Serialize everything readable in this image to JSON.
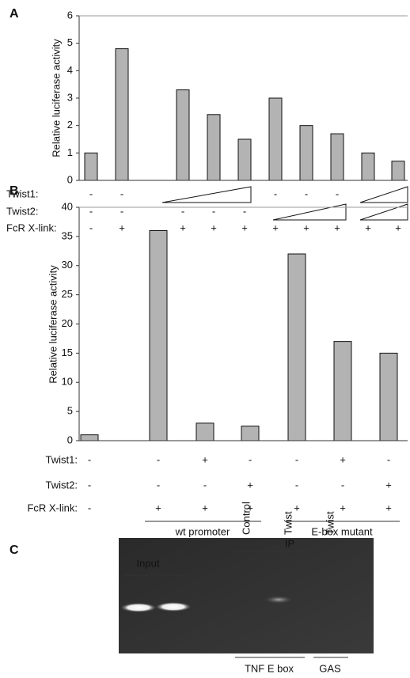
{
  "chart_data": [
    {
      "type": "bar",
      "panel_label": "A",
      "y_label": "Relative luciferase activity",
      "categories": [
        null,
        null,
        null,
        null,
        null,
        null,
        null,
        null,
        null,
        null,
        null
      ],
      "values": [
        1,
        4.8,
        null,
        3.3,
        2.4,
        1.5,
        3.0,
        2.0,
        1.7,
        1.0,
        0.7
      ],
      "color": "#b3b3b3",
      "ylim": [
        0,
        6
      ],
      "yticks": [
        0,
        1,
        2,
        3,
        4,
        5,
        6
      ],
      "rows": [
        {
          "label": "Twist1:",
          "marks": [
            "-",
            "-",
            null,
            null,
            null,
            null,
            "-",
            "-",
            "-",
            null,
            null
          ]
        },
        {
          "label": "Twist2:",
          "marks": [
            "-",
            "-",
            null,
            "-",
            "-",
            "-",
            null,
            null,
            null,
            null,
            null
          ]
        },
        {
          "label": "FcR X-link:",
          "marks": [
            "-",
            "+",
            null,
            "+",
            "+",
            "+",
            "+",
            "+",
            "+",
            "+",
            "+"
          ]
        }
      ]
    },
    {
      "type": "bar",
      "panel_label": "B",
      "y_label": "Relative luciferase activity",
      "categories": [
        null,
        null,
        null,
        null,
        null,
        null,
        null
      ],
      "values": [
        1,
        36,
        3,
        2.5,
        32,
        17,
        15
      ],
      "color": "#b3b3b3",
      "ylim": [
        0,
        40
      ],
      "yticks": [
        0,
        5,
        10,
        15,
        20,
        25,
        30,
        35,
        40
      ],
      "rows": [
        {
          "label": "Twist1:",
          "marks": [
            "-",
            "-",
            "+",
            "-",
            "-",
            "+",
            "-"
          ]
        },
        {
          "label": "Twist2:",
          "marks": [
            "-",
            "-",
            "-",
            "+",
            "-",
            "-",
            "+"
          ]
        },
        {
          "label": "FcR X-link:",
          "marks": [
            "-",
            "+",
            "+",
            "+",
            "+",
            "+",
            "+"
          ]
        }
      ],
      "groups": [
        "wt promoter",
        "E-box mutant"
      ]
    }
  ],
  "gel": {
    "panel_label": "C",
    "input": "Input",
    "ip": "IP",
    "lanes": [
      "Control",
      "Twist",
      "Twist"
    ],
    "targets": [
      "TNF E box",
      "GAS"
    ]
  }
}
